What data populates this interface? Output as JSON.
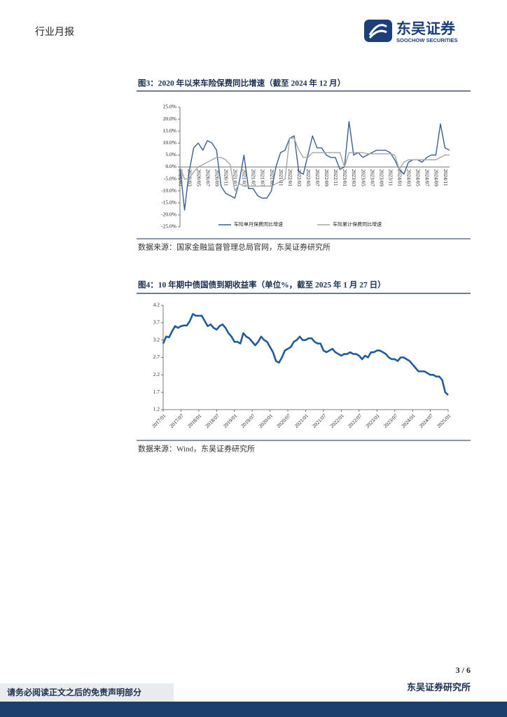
{
  "header": {
    "title": "行业月报",
    "logo_name": "东吴证券",
    "logo_sub": "SOOCHOW SECURITIES"
  },
  "figures": [
    {
      "caption": "图3：2020 年以来车险保费同比增速（截至 2024 年 12 月）",
      "source": "数据来源：国家金融监督管理总局官网，东吴证券研究所"
    },
    {
      "caption": "图4：10 年期中债国债到期收益率（单位%，截至 2025 年 1 月 27 日）",
      "source": "数据来源：Wind，东吴证券研究所"
    }
  ],
  "footer": {
    "page": "3 / 6",
    "disclaimer": "请务必阅读正文之后的免责声明部分",
    "institution": "东吴证券研究所"
  },
  "chart_data": [
    {
      "type": "line",
      "categories": [
        "2020/01",
        null,
        "2020/03",
        null,
        "2020/05",
        null,
        "2020/07",
        null,
        "2020/09",
        null,
        "2020/11",
        null,
        "2021/01",
        null,
        "2021/03",
        null,
        "2021/05",
        null,
        "2021/07",
        null,
        "2021/09",
        null,
        "2021/11",
        null,
        "2022/01",
        null,
        "2022/03",
        null,
        "2022/05",
        null,
        "2022/07",
        null,
        "2022/09",
        null,
        "2022/11",
        null,
        "2023/01",
        null,
        "2023/03",
        null,
        "2023/05",
        null,
        "2023/07",
        null,
        "2023/09",
        null,
        "2023/11",
        null,
        "2024/01",
        null,
        "2024/03",
        null,
        "2024/05",
        null,
        "2024/07",
        null,
        "2024/09",
        null,
        "2024/11",
        null
      ],
      "series": [
        {
          "name": "车险单月保费同比增速",
          "color": "#3b5f8c",
          "values": [
            0,
            -18,
            -2,
            8,
            10,
            7,
            11,
            10,
            7,
            -8,
            -11,
            -12,
            -13,
            -6,
            5,
            -9,
            -9,
            -12,
            -13,
            -13,
            -10,
            0,
            6,
            7,
            12,
            13,
            -2,
            -3,
            5,
            13,
            8,
            8,
            5,
            4,
            4,
            -1,
            0,
            19,
            5,
            6,
            4,
            5,
            6,
            7,
            7,
            7,
            6,
            3,
            -1,
            -3,
            2,
            3,
            3,
            2,
            4,
            5,
            5,
            18,
            8,
            7
          ]
        },
        {
          "name": "车险累计保费同比增速",
          "color": "#a6a6a6",
          "values": [
            0,
            -5,
            -5,
            -2,
            0,
            1,
            2,
            3,
            4,
            4,
            3,
            1,
            -10,
            -7,
            -8,
            -8,
            -8,
            -8,
            -8,
            -8,
            -8,
            -7,
            -6,
            -5,
            12,
            12,
            7,
            4,
            4,
            6,
            6,
            6,
            6,
            6,
            6,
            6,
            0,
            6,
            6,
            6,
            6,
            5.5,
            5.5,
            5.5,
            5.5,
            5.5,
            5.5,
            5,
            -1,
            2,
            3,
            3,
            3,
            3,
            3,
            3,
            3,
            4,
            5,
            5
          ]
        }
      ],
      "ylim": [
        -25,
        25
      ],
      "yticks": [
        {
          "value": -25,
          "label": "-25.0%"
        },
        {
          "value": -20,
          "label": "-20.0%"
        },
        {
          "value": -15,
          "label": "-15.0%"
        },
        {
          "value": -10,
          "label": "-10.0%"
        },
        {
          "value": -5,
          "label": "-5.0%"
        },
        {
          "value": 0,
          "label": "0.0%"
        },
        {
          "value": 5,
          "label": "5.0%"
        },
        {
          "value": 10,
          "label": "10.0%"
        },
        {
          "value": 15,
          "label": "15.0%"
        },
        {
          "value": 20,
          "label": "20.0%"
        },
        {
          "value": 25,
          "label": "25.0%"
        }
      ],
      "legend": "bottom"
    },
    {
      "type": "line",
      "categories": [
        "2017/01",
        null,
        null,
        null,
        null,
        null,
        "2017/07",
        null,
        null,
        null,
        null,
        null,
        "2018/01",
        null,
        null,
        null,
        null,
        null,
        "2018/07",
        null,
        null,
        null,
        null,
        null,
        "2019/01",
        null,
        null,
        null,
        null,
        null,
        "2019/07",
        null,
        null,
        null,
        null,
        null,
        "2020/01",
        null,
        null,
        null,
        null,
        null,
        "2020/07",
        null,
        null,
        null,
        null,
        null,
        "2021/01",
        null,
        null,
        null,
        null,
        null,
        "2021/07",
        null,
        null,
        null,
        null,
        null,
        "2022/01",
        null,
        null,
        null,
        null,
        null,
        "2022/07",
        null,
        null,
        null,
        null,
        null,
        "2023/01",
        null,
        null,
        null,
        null,
        null,
        "2023/07",
        null,
        null,
        null,
        null,
        null,
        "2024/01",
        null,
        null,
        null,
        null,
        null,
        "2024/07",
        null,
        null,
        null,
        null,
        null,
        "2025/01"
      ],
      "series": [
        {
          "color": "#1f5c9e",
          "values": [
            3.1,
            3.3,
            3.28,
            3.45,
            3.6,
            3.55,
            3.6,
            3.62,
            3.62,
            3.75,
            3.95,
            3.9,
            3.9,
            3.9,
            3.75,
            3.6,
            3.65,
            3.55,
            3.5,
            3.6,
            3.65,
            3.55,
            3.4,
            3.3,
            3.15,
            3.15,
            3.1,
            3.4,
            3.3,
            3.25,
            3.15,
            3.05,
            3.15,
            3.3,
            3.2,
            3.15,
            3.0,
            2.85,
            2.6,
            2.55,
            2.7,
            2.9,
            2.95,
            3.0,
            3.15,
            3.2,
            3.3,
            3.2,
            3.2,
            3.25,
            3.25,
            3.15,
            3.1,
            3.1,
            2.9,
            2.85,
            2.9,
            2.95,
            2.85,
            2.8,
            2.75,
            2.8,
            2.8,
            2.85,
            2.8,
            2.8,
            2.75,
            2.65,
            2.75,
            2.7,
            2.85,
            2.85,
            2.9,
            2.9,
            2.85,
            2.8,
            2.7,
            2.65,
            2.65,
            2.6,
            2.7,
            2.7,
            2.65,
            2.6,
            2.5,
            2.4,
            2.3,
            2.3,
            2.3,
            2.25,
            2.2,
            2.2,
            2.15,
            2.15,
            2.05,
            1.7,
            1.62
          ]
        }
      ],
      "ylim": [
        1.2,
        4.2
      ],
      "yticks": [
        1.2,
        1.7,
        2.2,
        2.7,
        3.2,
        3.7,
        4.2
      ]
    }
  ]
}
